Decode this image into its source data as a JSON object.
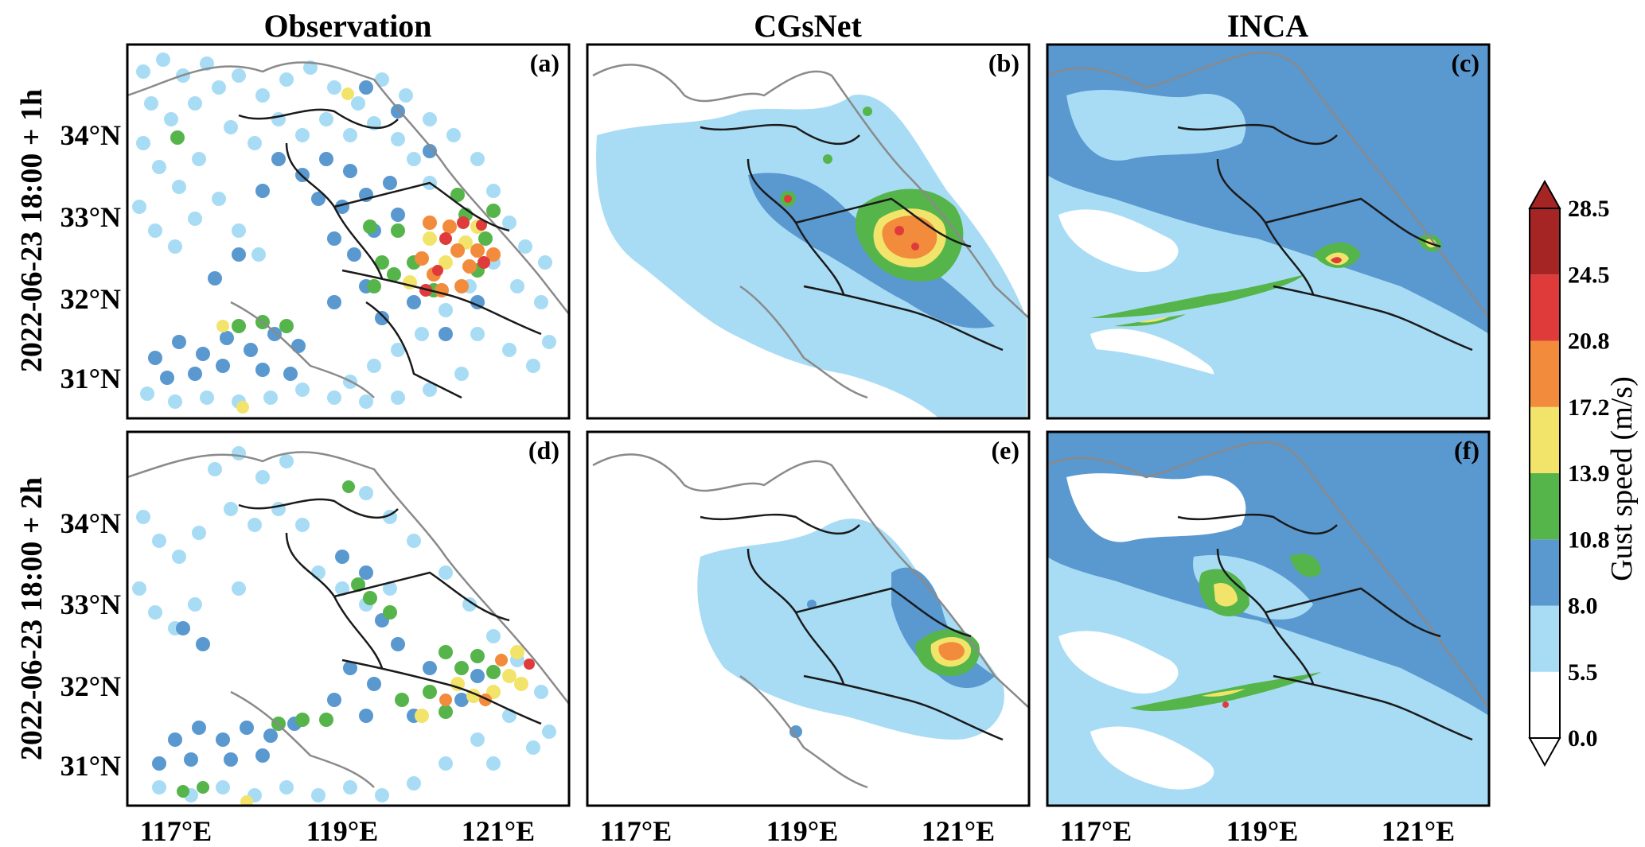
{
  "columns": [
    "Observation",
    "CGsNet",
    "INCA"
  ],
  "rows": [
    "2022-06-23 18:00 + 1h",
    "2022-06-23 18:00 + 2h"
  ],
  "panel_labels": [
    "(a)",
    "(b)",
    "(c)",
    "(d)",
    "(e)",
    "(f)"
  ],
  "lat_ticks": [
    "34°N",
    "33°N",
    "32°N",
    "31°N"
  ],
  "lon_ticks": [
    "117°E",
    "119°E",
    "121°E"
  ],
  "colorbar": {
    "title": "Gust speed (m/s)",
    "levels": [
      0.0,
      5.5,
      8.0,
      10.8,
      13.9,
      17.2,
      20.8,
      24.5,
      28.5
    ],
    "level_labels": [
      "0.0",
      "5.5",
      "8.0",
      "10.8",
      "13.9",
      "17.2",
      "20.8",
      "24.5",
      "28.5"
    ],
    "colors": [
      "#ffffff",
      "#a8dcf5",
      "#5a98d0",
      "#55b54a",
      "#f2e46a",
      "#f28b3c",
      "#e03b3b",
      "#a52525"
    ],
    "extend": "both"
  },
  "colors": {
    "province_border": "#1a1a1a",
    "outer_border": "#8a8a8a",
    "frame": "#000000"
  }
}
